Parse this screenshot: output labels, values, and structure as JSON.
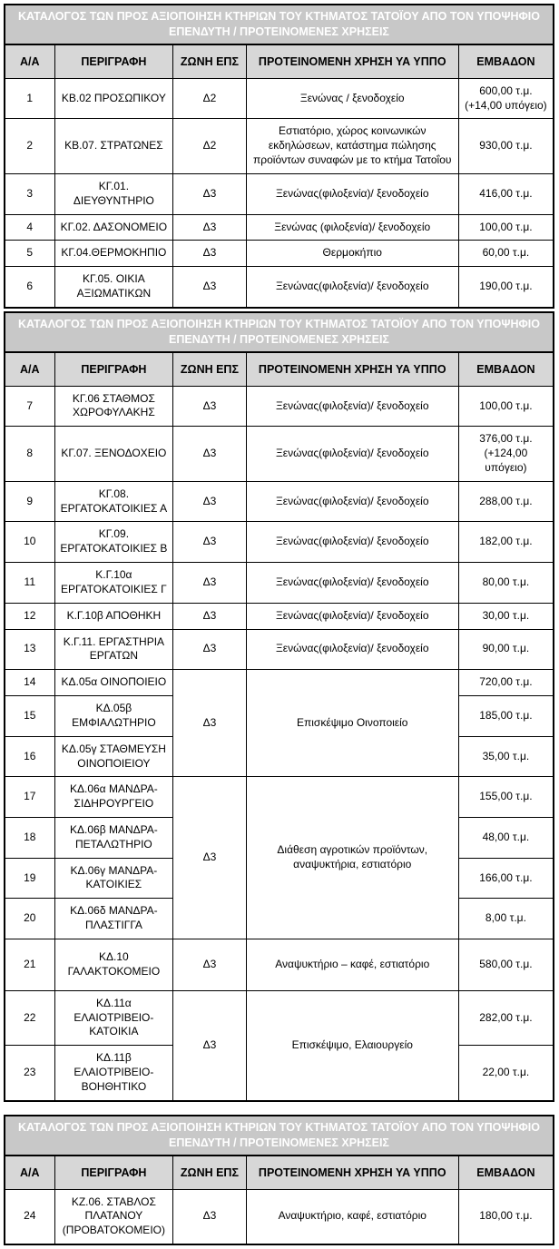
{
  "banner_title": "ΚΑΤΑΛΟΓΟΣ ΤΩΝ ΠΡΟΣ ΑΞΙΟΠΟΙΗΣΗ ΚΤΗΡΙΩΝ ΤΟΥ ΚΤΗΜΑΤΟΣ ΤΑΤΟΪΟΥ ΑΠΟ ΤΟΝ ΥΠΟΨΗΦΙΟ ΕΠΕΝΔΥΤΗ / ΠΡΟΤΕΙΝΟΜΕΝΕΣ ΧΡΗΣΕΙΣ",
  "columns": [
    "Α/Α",
    "ΠΕΡΙΓΡΑΦΗ",
    "ΖΩΝΗ ΕΠΣ",
    "ΠΡΟΤΕΙΝΟΜΕΝΗ ΧΡΗΣΗ ΥΑ ΥΠΠΟ",
    "ΕΜΒΑΔΟΝ"
  ],
  "colors": {
    "banner_bg": "#c8c8c8",
    "banner_text": "#ffffff",
    "header_bg": "#d7d7d7",
    "border": "#000000"
  },
  "tables": [
    {
      "rows": [
        {
          "aa": "1",
          "desc": "ΚΒ.02 ΠΡΟΣΩΠΙΚΟΥ",
          "zone": "Δ2",
          "use": "Ξενώνας / ξενοδοχείο",
          "area": "600,00 τ.μ. (+14,00 υπόγειο)"
        },
        {
          "aa": "2",
          "desc": "ΚΒ.07. ΣΤΡΑΤΩΝΕΣ",
          "zone": "Δ2",
          "use": "Εστιατόριο, χώρος κοινωνικών εκδηλώσεων, κατάστημα πώλησης προϊόντων συναφών με το κτήμα Τατοΐου",
          "area": "930,00 τ.μ."
        },
        {
          "aa": "3",
          "desc": "ΚΓ.01. ΔΙΕΥΘΥΝΤΗΡΙΟ",
          "zone": "Δ3",
          "use": "Ξενώνας(φιλοξενία)/ ξενοδοχείο",
          "area": "416,00 τ.μ."
        },
        {
          "aa": "4",
          "desc": "ΚΓ.02. ΔΑΣΟΝΟΜΕΙΟ",
          "zone": "Δ3",
          "use": "Ξενώνας (φιλοξενία)/ ξενοδοχείο",
          "area": "100,00 τ.μ."
        },
        {
          "aa": "5",
          "desc": "ΚΓ.04.ΘΕΡΜΟΚΗΠΙΟ",
          "zone": "Δ3",
          "use": "Θερμοκήπιο",
          "area": "60,00 τ.μ."
        },
        {
          "aa": "6",
          "desc": "ΚΓ.05. ΟΙΚΙΑ ΑΞΙΩΜΑΤΙΚΩΝ",
          "zone": "Δ3",
          "use": "Ξενώνας(φιλοξενία)/ ξενοδοχείο",
          "area": "190,00 τ.μ."
        }
      ]
    },
    {
      "rows": [
        {
          "aa": "7",
          "desc": "ΚΓ.06 ΣΤΑΘΜΟΣ ΧΩΡΟΦΥΛΑΚΗΣ",
          "zone": "Δ3",
          "use": "Ξενώνας(φιλοξενία)/ ξενοδοχείο",
          "area": "100,00 τ.μ."
        },
        {
          "aa": "8",
          "desc": "ΚΓ.07. ΞΕΝΟΔΟΧΕΙΟ",
          "zone": "Δ3",
          "use": "Ξενώνας(φιλοξενία)/ ξενοδοχείο",
          "area": "376,00 τ.μ. (+124,00 υπόγειο)"
        },
        {
          "aa": "9",
          "desc": "ΚΓ.08. ΕΡΓΑΤΟΚΑΤΟΙΚΙΕΣ Α",
          "zone": "Δ3",
          "use": "Ξενώνας(φιλοξενία)/ ξενοδοχείο",
          "area": "288,00 τ.μ."
        },
        {
          "aa": "10",
          "desc": "ΚΓ.09. ΕΡΓΑΤΟΚΑΤΟΙΚΙΕΣ Β",
          "zone": "Δ3",
          "use": "Ξενώνας(φιλοξενία)/ ξενοδοχείο",
          "area": "182,00 τ.μ."
        },
        {
          "aa": "11",
          "desc": "Κ.Γ.10α ΕΡΓΑΤΟΚΑΤΟΙΚΙΕΣ Γ",
          "zone": "Δ3",
          "use": "Ξενώνας(φιλοξενία)/ ξενοδοχείο",
          "area": "80,00 τ.μ."
        },
        {
          "aa": "12",
          "desc": "Κ.Γ.10β ΑΠΟΘΗΚΗ",
          "zone": "Δ3",
          "use": "Ξενώνας(φιλοξενία)/ ξενοδοχείο",
          "area": "30,00 τ.μ."
        },
        {
          "aa": "13",
          "desc": "Κ.Γ.11. ΕΡΓΑΣΤΗΡΙΑ ΕΡΓΑΤΩΝ",
          "zone": "Δ3",
          "use": "Ξενώνας(φιλοξενία)/ ξενοδοχείο",
          "area": "90,00 τ.μ."
        },
        {
          "aa": "14",
          "desc": "ΚΔ.05α ΟΙΝΟΠΟΙΕΙΟ",
          "zone": "Δ3",
          "zone_span": 3,
          "use": "Επισκέψιμο Οινοποιείο",
          "use_span": 3,
          "area": "720,00 τ.μ."
        },
        {
          "aa": "15",
          "desc": "ΚΔ.05β ΕΜΦΙΑΛΩΤΗΡΙΟ",
          "area": "185,00 τ.μ."
        },
        {
          "aa": "16",
          "desc": "ΚΔ.05γ ΣΤΑΘΜΕΥΣΗ ΟΙΝΟΠΟΙΕΙΟΥ",
          "area": "35,00 τ.μ."
        },
        {
          "aa": "17",
          "desc": "ΚΔ.06α ΜΑΝΔΡΑ-ΣΙΔΗΡΟΥΡΓΕΙΟ",
          "zone": "Δ3",
          "zone_span": 4,
          "use": "Διάθεση αγροτικών προϊόντων, αναψυκτήρια, εστιατόριο",
          "use_span": 4,
          "area": "155,00 τ.μ."
        },
        {
          "aa": "18",
          "desc": "ΚΔ.06β ΜΑΝΔΡΑ-ΠΕΤΑΛΩΤΗΡΙΟ",
          "area": "48,00 τ.μ."
        },
        {
          "aa": "19",
          "desc": "ΚΔ.06γ ΜΑΝΔΡΑ-ΚΑΤΟΙΚΙΕΣ",
          "area": "166,00 τ.μ."
        },
        {
          "aa": "20",
          "desc": "ΚΔ.06δ ΜΑΝΔΡΑ-ΠΛΑΣΤΙΓΓΑ",
          "area": "8,00 τ.μ."
        },
        {
          "aa": "21",
          "desc": "ΚΔ.10 ΓΑΛΑΚΤΟΚΟΜΕΙΟ",
          "zone": "Δ3",
          "use": "Αναψυκτήριο – καφέ, εστιατόριο",
          "area": "580,00 τ.μ.",
          "tall": true
        },
        {
          "aa": "22",
          "desc": "ΚΔ.11α ΕΛΑΙΟΤΡΙΒΕΙΟ-ΚΑΤΟΙΚΙΑ",
          "zone": "Δ3",
          "zone_span": 2,
          "use": "Επισκέψιμο, Ελαιουργείο",
          "use_span": 2,
          "area": "282,00 τ.μ."
        },
        {
          "aa": "23",
          "desc": "ΚΔ.11β ΕΛΑΙΟΤΡΙΒΕΙΟ-ΒΟΗΘΗΤΙΚΟ",
          "area": "22,00 τ.μ."
        }
      ]
    },
    {
      "rows": [
        {
          "aa": "24",
          "desc": "ΚΖ.06. ΣΤΑΒΛΟΣ ΠΛΑΤΑΝΟΥ (ΠΡΟΒΑΤΟΚΟΜΕΙΟ)",
          "zone": "Δ3",
          "use": "Αναψυκτήριο, καφέ, εστιατόριο",
          "area": "180,00 τ.μ.",
          "tall": true
        }
      ]
    }
  ]
}
